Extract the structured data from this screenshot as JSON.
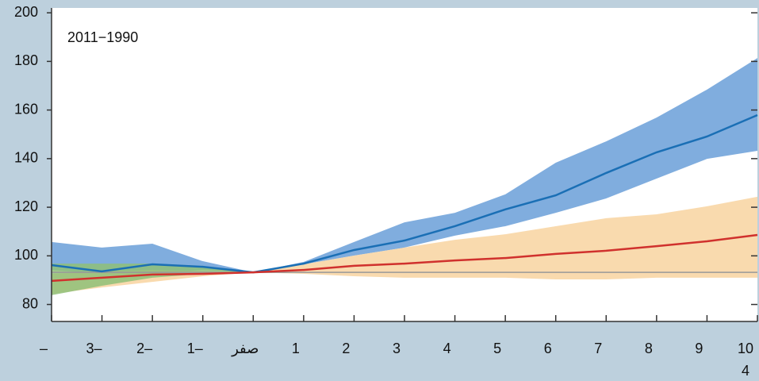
{
  "chart_data": {
    "type": "line",
    "annotations": [
      "2011−1990",
      "4"
    ],
    "categories": [
      "–",
      "3–",
      "2–",
      "1–",
      "صفر",
      "1",
      "2",
      "3",
      "4",
      "5",
      "6",
      "7",
      "8",
      "9",
      "10"
    ],
    "ylim": [
      73,
      202
    ],
    "yticks": [
      80,
      100,
      120,
      140,
      160,
      180,
      200
    ],
    "bands": [
      {
        "color": "#6a9fd8",
        "upper": [
          105.7,
          103.4,
          105.0,
          97.8,
          93.2,
          97.5,
          105.7,
          113.8,
          117.7,
          125.3,
          138.3,
          147.1,
          156.9,
          168.4,
          181.4
        ],
        "lower": [
          94.2,
          92.6,
          92.6,
          94.2,
          93.2,
          96.5,
          100.1,
          103.4,
          108.3,
          112.2,
          117.7,
          123.6,
          131.8,
          139.9,
          143.2
        ]
      },
      {
        "color": "#f8d3a0",
        "upper": [
          92.6,
          93.6,
          94.2,
          93.6,
          93.2,
          96.5,
          100.1,
          103.4,
          106.6,
          108.9,
          112.2,
          115.5,
          117.1,
          120.4,
          124.3
        ],
        "lower": [
          84.4,
          87.0,
          89.3,
          91.6,
          93.2,
          92.6,
          91.6,
          91.0,
          91.0,
          91.0,
          90.3,
          90.3,
          91.0,
          91.0,
          91.0
        ]
      },
      {
        "color": "#8fbf78",
        "upper": [
          96.8,
          96.8,
          96.8,
          95.9,
          93.2,
          null,
          null,
          null,
          null,
          null,
          null,
          null,
          null,
          null,
          null
        ],
        "lower": [
          83.8,
          87.7,
          91.0,
          92.6,
          93.2,
          null,
          null,
          null,
          null,
          null,
          null,
          null,
          null,
          null,
          null
        ]
      }
    ],
    "series": [
      {
        "color": "#999999",
        "values": [
          93.2,
          93.2,
          93.2,
          93.2,
          93.2,
          93.2,
          93.2,
          93.2,
          93.2,
          93.2,
          93.2,
          93.2,
          93.2,
          93.2,
          93.2
        ]
      },
      {
        "color": "#1a6fb5",
        "values": [
          96.2,
          93.6,
          96.5,
          95.5,
          93.2,
          96.8,
          102.4,
          106.3,
          112.2,
          119.1,
          124.9,
          134.1,
          142.6,
          149.1,
          157.9
        ]
      },
      {
        "color": "#d0312d",
        "values": [
          89.7,
          91.0,
          92.3,
          92.6,
          93.2,
          94.2,
          95.9,
          96.8,
          98.1,
          99.1,
          100.8,
          102.1,
          104.0,
          106.0,
          108.6
        ]
      }
    ]
  }
}
